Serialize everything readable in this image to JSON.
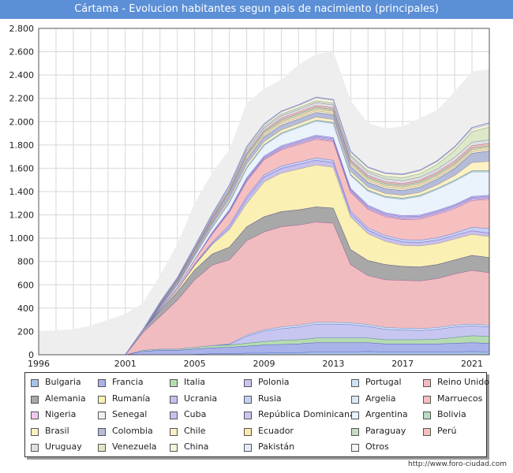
{
  "page": {
    "title": "Cártama - Evolucion habitantes segun pais de nacimiento (principales)",
    "source": "http://www.foro-ciudad.com"
  },
  "chart_data": {
    "type": "area",
    "stacked": true,
    "title": "Cártama - Evolucion habitantes segun pais de nacimiento (principales)",
    "x": [
      1996,
      1998,
      1999,
      2000,
      2001,
      2002,
      2003,
      2004,
      2005,
      2006,
      2007,
      2008,
      2009,
      2010,
      2011,
      2012,
      2013,
      2014,
      2015,
      2016,
      2017,
      2018,
      2019,
      2020,
      2021,
      2022
    ],
    "xticks": [
      1996,
      2001,
      2005,
      2009,
      2013,
      2017,
      2021
    ],
    "ylim": [
      0,
      2800
    ],
    "yticks": [
      0,
      200,
      400,
      600,
      800,
      1000,
      1200,
      1400,
      1600,
      1800,
      2000,
      2200,
      2400,
      2600,
      2800
    ],
    "ytick_labels": [
      "0",
      "200",
      "400",
      "600",
      "800",
      "1.000",
      "1.200",
      "1.400",
      "1.600",
      "1.800",
      "2.000",
      "2.200",
      "2.400",
      "2.600",
      "2.800"
    ],
    "grid": true,
    "total": {
      "name": "Total",
      "color": "#eeeeee",
      "values": [
        200,
        220,
        250,
        300,
        350,
        440,
        680,
        950,
        1300,
        1560,
        1760,
        2160,
        2280,
        2360,
        2490,
        2580,
        2600,
        2180,
        1990,
        1940,
        1960,
        2030,
        2100,
        2260,
        2430,
        2450
      ]
    },
    "series": [
      {
        "name": "Bulgaria",
        "color": "#a7c1e8",
        "values": [
          0,
          0,
          0,
          0,
          0,
          0,
          0,
          0,
          5,
          10,
          10,
          15,
          15,
          20,
          20,
          25,
          25,
          25,
          30,
          25,
          25,
          25,
          25,
          25,
          30,
          25
        ]
      },
      {
        "name": "Francia",
        "color": "#aab2ea",
        "values": [
          0,
          0,
          0,
          0,
          0,
          30,
          40,
          40,
          45,
          50,
          55,
          60,
          70,
          70,
          75,
          80,
          80,
          80,
          75,
          70,
          70,
          70,
          70,
          75,
          75,
          75
        ]
      },
      {
        "name": "Italia",
        "color": "#b5dcb0",
        "values": [
          0,
          0,
          0,
          0,
          0,
          10,
          10,
          10,
          15,
          20,
          20,
          25,
          30,
          35,
          35,
          40,
          40,
          40,
          40,
          35,
          35,
          35,
          40,
          50,
          60,
          60
        ]
      },
      {
        "name": "Polonia",
        "color": "#c6c6f0",
        "values": [
          0,
          0,
          0,
          0,
          0,
          0,
          0,
          0,
          0,
          0,
          5,
          60,
          90,
          100,
          110,
          120,
          120,
          115,
          100,
          90,
          85,
          80,
          85,
          90,
          85,
          80
        ]
      },
      {
        "name": "Portugal",
        "color": "#cde3f5",
        "values": [
          0,
          0,
          0,
          0,
          0,
          0,
          0,
          0,
          0,
          0,
          5,
          10,
          10,
          15,
          15,
          15,
          15,
          15,
          15,
          15,
          15,
          15,
          15,
          15,
          15,
          15
        ]
      },
      {
        "name": "Reino Unido",
        "color": "#f0bcc0",
        "values": [
          0,
          0,
          0,
          0,
          0,
          150,
          280,
          420,
          580,
          690,
          720,
          810,
          840,
          860,
          860,
          860,
          850,
          500,
          420,
          410,
          410,
          410,
          420,
          440,
          460,
          450
        ]
      },
      {
        "name": "Alemania",
        "color": "#a8a8a8",
        "values": [
          0,
          0,
          0,
          0,
          0,
          20,
          50,
          70,
          85,
          95,
          110,
          120,
          130,
          130,
          130,
          130,
          130,
          130,
          130,
          130,
          120,
          120,
          120,
          120,
          130,
          130
        ]
      },
      {
        "name": "Rumanía",
        "color": "#fbf0b4",
        "values": [
          0,
          0,
          0,
          0,
          0,
          0,
          10,
          20,
          40,
          80,
          150,
          200,
          300,
          330,
          350,
          360,
          350,
          280,
          230,
          200,
          180,
          180,
          180,
          180,
          180,
          180
        ]
      },
      {
        "name": "Ucrania",
        "color": "#c8c0ec",
        "values": [
          0,
          0,
          0,
          0,
          0,
          0,
          0,
          0,
          5,
          10,
          20,
          40,
          40,
          40,
          40,
          40,
          40,
          30,
          30,
          30,
          30,
          30,
          30,
          30,
          30,
          30
        ]
      },
      {
        "name": "Rusia",
        "color": "#c8d0f4",
        "values": [
          0,
          0,
          0,
          0,
          0,
          0,
          0,
          0,
          5,
          10,
          20,
          20,
          20,
          20,
          20,
          20,
          20,
          20,
          20,
          20,
          20,
          20,
          20,
          20,
          30,
          40
        ]
      },
      {
        "name": "Marruecos",
        "color": "#f6c0c0",
        "values": [
          0,
          0,
          0,
          0,
          0,
          0,
          10,
          20,
          40,
          70,
          110,
          130,
          130,
          140,
          150,
          160,
          160,
          160,
          160,
          160,
          170,
          180,
          200,
          210,
          230,
          250
        ]
      },
      {
        "name": "Nigeria",
        "color": "#f0c8ee",
        "values": [
          0,
          0,
          0,
          0,
          0,
          0,
          0,
          0,
          0,
          5,
          5,
          5,
          5,
          10,
          10,
          10,
          10,
          10,
          10,
          10,
          10,
          10,
          10,
          10,
          10,
          10
        ]
      },
      {
        "name": "Senegal",
        "color": "#f0f0f0",
        "values": [
          0,
          0,
          0,
          0,
          0,
          0,
          0,
          0,
          0,
          0,
          5,
          5,
          5,
          5,
          5,
          5,
          5,
          5,
          5,
          5,
          5,
          5,
          5,
          5,
          5,
          5
        ]
      },
      {
        "name": "Cuba",
        "color": "#c8c0ec",
        "values": [
          0,
          0,
          0,
          0,
          0,
          0,
          0,
          0,
          0,
          5,
          5,
          10,
          10,
          10,
          10,
          10,
          10,
          10,
          10,
          10,
          10,
          10,
          10,
          10,
          10,
          10
        ]
      },
      {
        "name": "República Dominicana",
        "color": "#d0c4f0",
        "values": [
          0,
          0,
          0,
          0,
          0,
          0,
          0,
          0,
          0,
          5,
          5,
          10,
          10,
          10,
          10,
          10,
          10,
          10,
          10,
          10,
          10,
          10,
          10,
          10,
          10,
          10
        ]
      },
      {
        "name": "Argentina",
        "color": "#eaf2fb",
        "values": [
          0,
          0,
          0,
          0,
          0,
          0,
          10,
          20,
          30,
          40,
          60,
          80,
          90,
          100,
          110,
          120,
          120,
          110,
          120,
          130,
          140,
          160,
          180,
          200,
          210,
          200
        ]
      },
      {
        "name": "Bolivia",
        "color": "#b8dcc4",
        "values": [
          0,
          0,
          0,
          0,
          0,
          0,
          0,
          0,
          0,
          5,
          10,
          10,
          10,
          10,
          10,
          10,
          10,
          10,
          10,
          10,
          10,
          10,
          10,
          10,
          10,
          10
        ]
      },
      {
        "name": "Brasil",
        "color": "#fcf2c4",
        "values": [
          0,
          0,
          0,
          0,
          0,
          0,
          5,
          10,
          10,
          15,
          20,
          25,
          25,
          25,
          25,
          25,
          25,
          25,
          25,
          25,
          25,
          25,
          30,
          40,
          70,
          80
        ]
      },
      {
        "name": "Colombia",
        "color": "#b4bcd8",
        "values": [
          0,
          0,
          0,
          0,
          0,
          0,
          5,
          10,
          15,
          20,
          30,
          40,
          40,
          40,
          40,
          40,
          40,
          40,
          40,
          40,
          40,
          45,
          50,
          60,
          80,
          90
        ]
      },
      {
        "name": "Chile",
        "color": "#f6f0c8",
        "values": [
          0,
          0,
          0,
          0,
          0,
          0,
          5,
          5,
          10,
          10,
          15,
          15,
          15,
          15,
          15,
          15,
          15,
          15,
          15,
          15,
          15,
          15,
          15,
          15,
          15,
          15
        ]
      },
      {
        "name": "Ecuador",
        "color": "#fde8b0",
        "values": [
          0,
          0,
          0,
          0,
          0,
          0,
          5,
          10,
          10,
          10,
          10,
          15,
          15,
          15,
          15,
          15,
          15,
          15,
          15,
          15,
          15,
          15,
          15,
          15,
          15,
          15
        ]
      },
      {
        "name": "Paraguay",
        "color": "#c8dcc0",
        "values": [
          0,
          0,
          0,
          0,
          0,
          0,
          0,
          5,
          5,
          10,
          10,
          15,
          15,
          15,
          15,
          15,
          15,
          15,
          15,
          15,
          15,
          15,
          15,
          15,
          15,
          15
        ]
      },
      {
        "name": "Perú",
        "color": "#f4c0b8",
        "values": [
          0,
          0,
          0,
          0,
          0,
          0,
          5,
          5,
          5,
          10,
          10,
          10,
          10,
          15,
          15,
          15,
          15,
          15,
          15,
          15,
          15,
          15,
          15,
          20,
          20,
          20
        ]
      },
      {
        "name": "Uruguay",
        "color": "#e0e0e0",
        "values": [
          0,
          0,
          0,
          0,
          0,
          0,
          5,
          5,
          10,
          10,
          15,
          20,
          20,
          20,
          20,
          25,
          25,
          25,
          25,
          25,
          25,
          25,
          25,
          30,
          30,
          30
        ]
      },
      {
        "name": "Venezuela",
        "color": "#dce8c8",
        "values": [
          0,
          0,
          0,
          0,
          0,
          0,
          5,
          5,
          5,
          10,
          10,
          15,
          15,
          15,
          15,
          15,
          15,
          15,
          15,
          20,
          25,
          30,
          40,
          60,
          90,
          110
        ]
      },
      {
        "name": "China",
        "color": "#f4f4d8",
        "values": [
          0,
          0,
          0,
          0,
          0,
          0,
          5,
          5,
          10,
          10,
          15,
          15,
          15,
          20,
          20,
          25,
          25,
          25,
          25,
          25,
          25,
          25,
          25,
          25,
          25,
          25
        ]
      },
      {
        "name": "Pakistán",
        "color": "#e4ecf8",
        "values": [
          0,
          0,
          0,
          0,
          0,
          0,
          0,
          0,
          0,
          5,
          5,
          5,
          5,
          5,
          5,
          5,
          5,
          5,
          5,
          5,
          5,
          5,
          5,
          5,
          10,
          10
        ]
      }
    ],
    "legend": {
      "position": "bottom",
      "entries": [
        {
          "name": "Bulgaria",
          "color": "#a7c1e8"
        },
        {
          "name": "Francia",
          "color": "#aab2ea"
        },
        {
          "name": "Italia",
          "color": "#b5dcb0"
        },
        {
          "name": "Polonia",
          "color": "#c6c6f0"
        },
        {
          "name": "Portugal",
          "color": "#cde3f5"
        },
        {
          "name": "Reino Unido",
          "color": "#f0bcc0"
        },
        {
          "name": "Alemania",
          "color": "#a8a8a8"
        },
        {
          "name": "Rumanía",
          "color": "#fbf0b4"
        },
        {
          "name": "Ucrania",
          "color": "#c8c0ec"
        },
        {
          "name": "Rusia",
          "color": "#c8d0f4"
        },
        {
          "name": "Argelia",
          "color": "#dde8f6"
        },
        {
          "name": "Marruecos",
          "color": "#f6c0c0"
        },
        {
          "name": "Nigeria",
          "color": "#f0c8ee"
        },
        {
          "name": "Senegal",
          "color": "#f0f0f0"
        },
        {
          "name": "Cuba",
          "color": "#c8c0ec"
        },
        {
          "name": "República Dominicana",
          "color": "#d0c4f0"
        },
        {
          "name": "Argentina",
          "color": "#eaf2fb"
        },
        {
          "name": "Bolivia",
          "color": "#b8dcc4"
        },
        {
          "name": "Brasil",
          "color": "#fcf2c4"
        },
        {
          "name": "Colombia",
          "color": "#b4bcd8"
        },
        {
          "name": "Chile",
          "color": "#f6f0c8"
        },
        {
          "name": "Ecuador",
          "color": "#fde8b0"
        },
        {
          "name": "Paraguay",
          "color": "#c8dcc0"
        },
        {
          "name": "Perú",
          "color": "#f4c0b8"
        },
        {
          "name": "Uruguay",
          "color": "#e0e0e0"
        },
        {
          "name": "Venezuela",
          "color": "#dce8c8"
        },
        {
          "name": "China",
          "color": "#f4f4d8"
        },
        {
          "name": "Pakistán",
          "color": "#e4ecf8"
        },
        {
          "name": "Otros",
          "color": "#f4f4f4"
        }
      ]
    }
  }
}
